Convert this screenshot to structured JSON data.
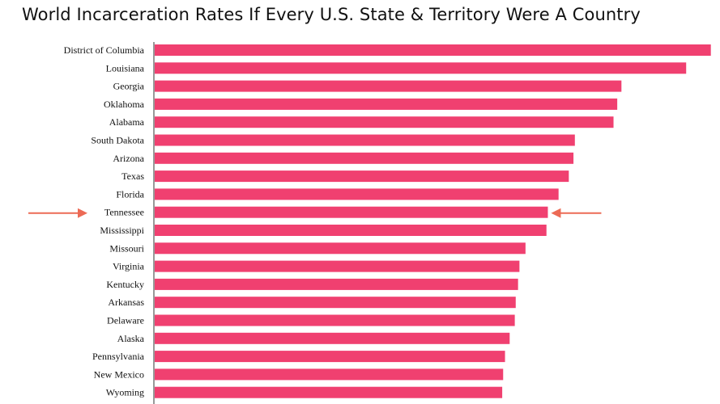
{
  "chart_data": {
    "type": "bar",
    "orientation": "horizontal",
    "title": "World Incarceration Rates If Every U.S. State & Territory Were A Country",
    "xlabel": "",
    "ylabel": "",
    "grid": false,
    "categories": [
      "District of Columbia",
      "Louisiana",
      "Georgia",
      "Oklahoma",
      "Alabama",
      "South Dakota",
      "Arizona",
      "Texas",
      "Florida",
      "Tennessee",
      "Mississippi",
      "Missouri",
      "Virginia",
      "Kentucky",
      "Arkansas",
      "Delaware",
      "Alaska",
      "Pennsylvania",
      "New Mexico",
      "Wyoming"
    ],
    "values": [
      1196,
      1143,
      1004,
      995,
      987,
      904,
      901,
      891,
      869,
      846,
      843,
      798,
      785,
      782,
      777,
      775,
      764,
      754,
      750,
      748
    ],
    "xlim": [
      0,
      1200
    ],
    "highlighted_category": "Tennessee",
    "colors": {
      "bar": "#f04070",
      "arrow": "#ec6a55",
      "axis": "#333333"
    }
  }
}
